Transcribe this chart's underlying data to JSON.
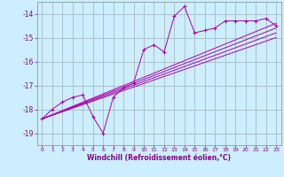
{
  "xlabel": "Windchill (Refroidissement éolien,°C)",
  "background_color": "#cceeff",
  "grid_color": "#aabbbb",
  "line_color": "#aa00aa",
  "xlim": [
    -0.5,
    23.5
  ],
  "ylim": [
    -19.5,
    -13.5
  ],
  "xticks": [
    0,
    1,
    2,
    3,
    4,
    5,
    6,
    7,
    8,
    9,
    10,
    11,
    12,
    13,
    14,
    15,
    16,
    17,
    18,
    19,
    20,
    21,
    22,
    23
  ],
  "yticks": [
    -19,
    -18,
    -17,
    -16,
    -15,
    -14
  ],
  "main_x": [
    0,
    1,
    2,
    3,
    4,
    5,
    6,
    7,
    8,
    9,
    10,
    11,
    12,
    13,
    14,
    15,
    16,
    17,
    18,
    19,
    20,
    21,
    22,
    23
  ],
  "main_y": [
    -18.4,
    -18.0,
    -17.7,
    -17.5,
    -17.4,
    -18.3,
    -19.0,
    -17.5,
    -17.1,
    -16.9,
    -15.5,
    -15.3,
    -15.6,
    -14.1,
    -13.7,
    -14.8,
    -14.7,
    -14.6,
    -14.3,
    -14.3,
    -14.3,
    -14.3,
    -14.2,
    -14.5
  ],
  "ref_lines": [
    {
      "x": [
        0,
        23
      ],
      "y": [
        -18.4,
        -14.4
      ]
    },
    {
      "x": [
        0,
        23
      ],
      "y": [
        -18.4,
        -14.6
      ]
    },
    {
      "x": [
        0,
        23
      ],
      "y": [
        -18.4,
        -14.8
      ]
    },
    {
      "x": [
        0,
        23
      ],
      "y": [
        -18.4,
        -15.0
      ]
    }
  ]
}
